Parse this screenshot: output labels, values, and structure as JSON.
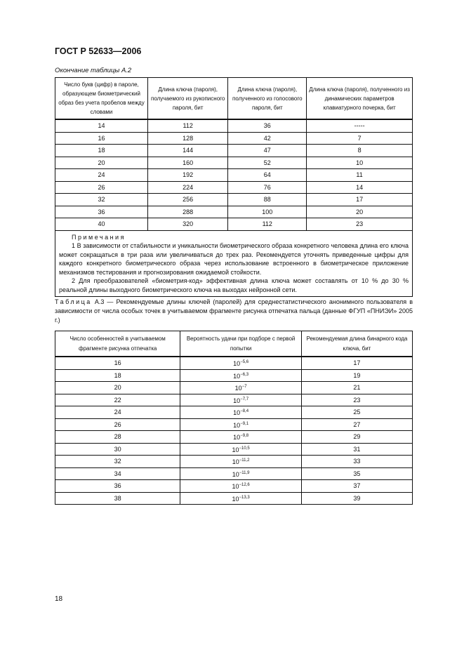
{
  "header": "ГОСТ Р 52633—2006",
  "table_a2": {
    "caption": "Окончание таблицы А.2",
    "headers": [
      "Число букв (цифр) в пароле, образующем биометрический образ без учета пробелов между словами",
      "Длина ключа (пароля), получаемого из рукописного пароля, бит",
      "Длина ключа (пароля), полученного из голосового пароля, бит",
      "Длина ключа (пароля), полученного из динамических параметров клавиатурного почерка, бит"
    ],
    "rows": [
      [
        "14",
        "112",
        "36",
        "-----"
      ],
      [
        "16",
        "128",
        "42",
        "7"
      ],
      [
        "18",
        "144",
        "47",
        "8"
      ],
      [
        "20",
        "160",
        "52",
        "10"
      ],
      [
        "24",
        "192",
        "64",
        "11"
      ],
      [
        "26",
        "224",
        "76",
        "14"
      ],
      [
        "32",
        "256",
        "88",
        "17"
      ],
      [
        "36",
        "288",
        "100",
        "20"
      ],
      [
        "40",
        "320",
        "112",
        "23"
      ]
    ],
    "notes_title": "Примечания",
    "notes": [
      "1 В зависимости от стабильности и уникальности биометрического образа конкретного человека длина его ключа может сокращаться в три раза или увеличиваться до трех раз. Рекомендуется уточнять приведенные цифры для каждого конкретного биометрического образа через использование встроенного в биометрическое приложение механизмов тестирования и прогнозирования ожидаемой стойкости.",
      "2 Для преобразователей «биометрия-код» эффективная длина ключа может составлять от 10 % до 30 % реальной длины выходного биометрического ключа на выходах нейронной сети."
    ]
  },
  "table_a3": {
    "caption_label": "Таблица",
    "caption_text": " А.3 — Рекомендуемые длины ключей (паролей) для среднестатистического анонимного пользователя в зависимости от числа особых точек в учитываемом фрагменте рисунка отпечатка пальца (данные ФГУП «ПНИЭИ» 2005 г.)",
    "headers": [
      "Число особенностей в учитываемом фрагменте рисунка отпечатка",
      "Вероятность удачи при подборе с первой попытки",
      "Рекомендуемая длина бинарного кода ключа, бит"
    ],
    "rows": [
      [
        "16",
        "10",
        "−5,6",
        "17"
      ],
      [
        "18",
        "10",
        "−6,3",
        "19"
      ],
      [
        "20",
        "10",
        "−7",
        "21"
      ],
      [
        "22",
        "10",
        "−7,7",
        "23"
      ],
      [
        "24",
        "10",
        "−8,4",
        "25"
      ],
      [
        "26",
        "10",
        "−9,1",
        "27"
      ],
      [
        "28",
        "10",
        "−9,8",
        "29"
      ],
      [
        "30",
        "10",
        "−10,5",
        "31"
      ],
      [
        "32",
        "10",
        "−11,2",
        "33"
      ],
      [
        "34",
        "10",
        "−11,9",
        "35"
      ],
      [
        "36",
        "10",
        "−12,6",
        "37"
      ],
      [
        "38",
        "10",
        "−13,3",
        "39"
      ]
    ]
  },
  "page_number": "18"
}
